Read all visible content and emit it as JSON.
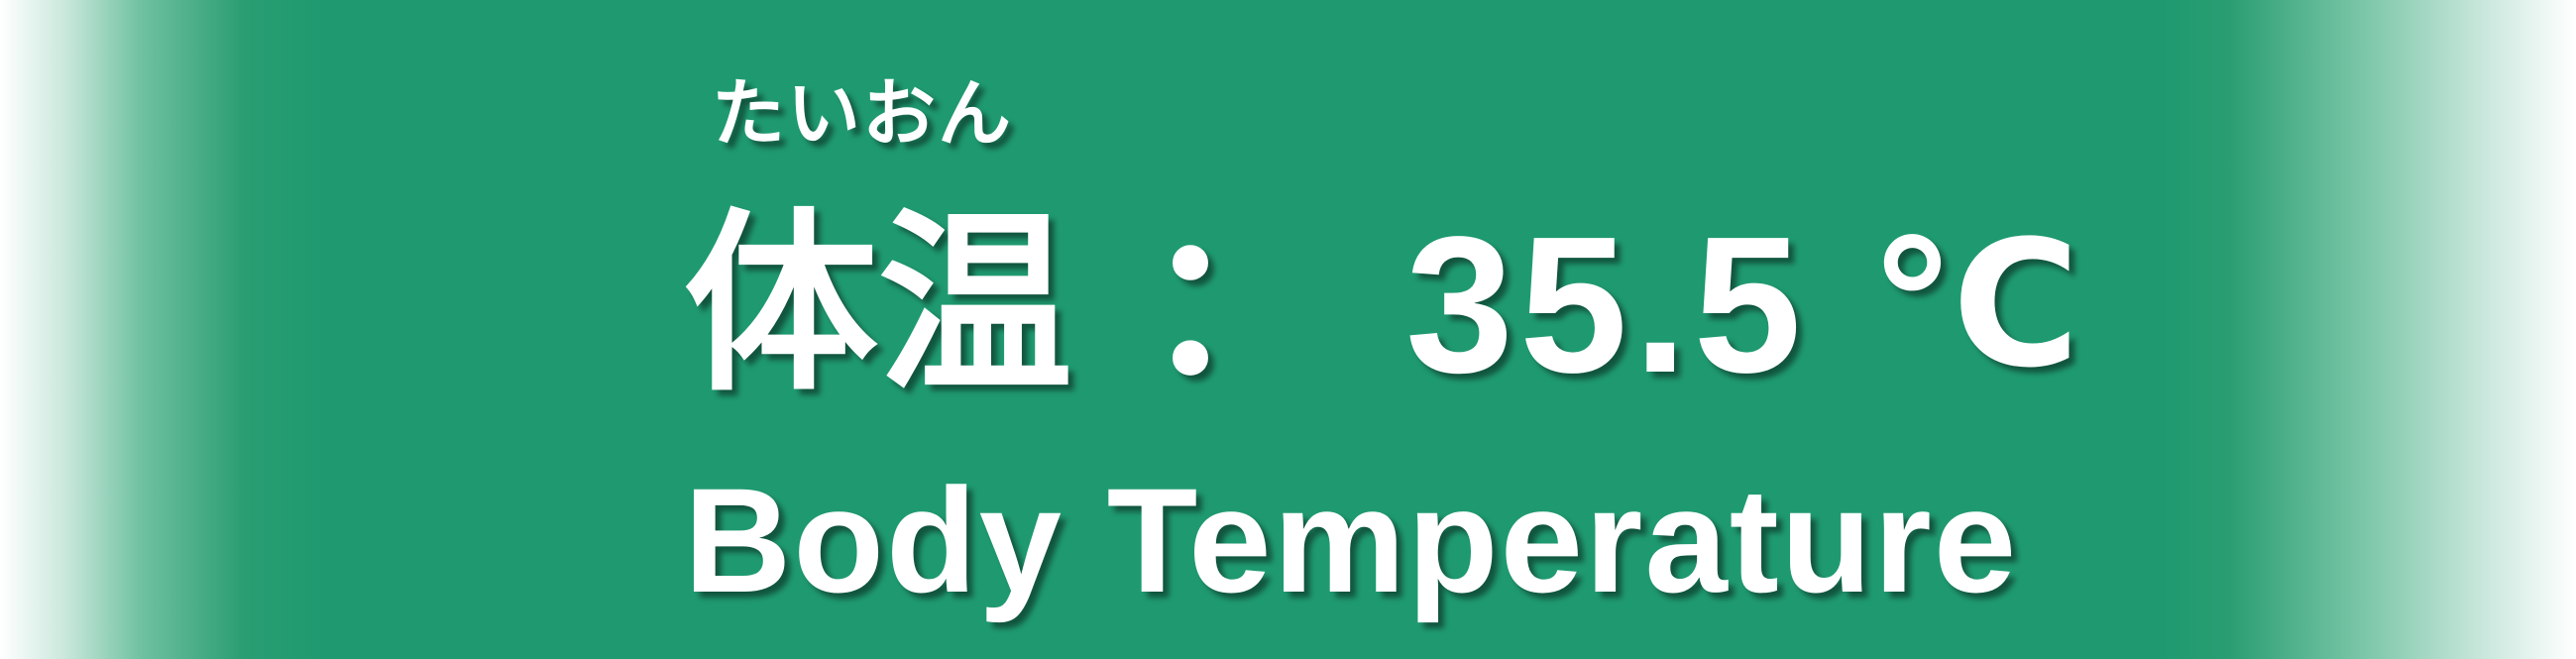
{
  "banner": {
    "furigana": "たいおん",
    "label_kanji": "体温",
    "separator": "：",
    "temperature_value": "35.5",
    "temperature_unit": "℃",
    "label_english": "Body Temperature",
    "colors": {
      "background": "#1f9a70",
      "text": "#ffffff",
      "edge_fade": "#ffffff"
    }
  }
}
